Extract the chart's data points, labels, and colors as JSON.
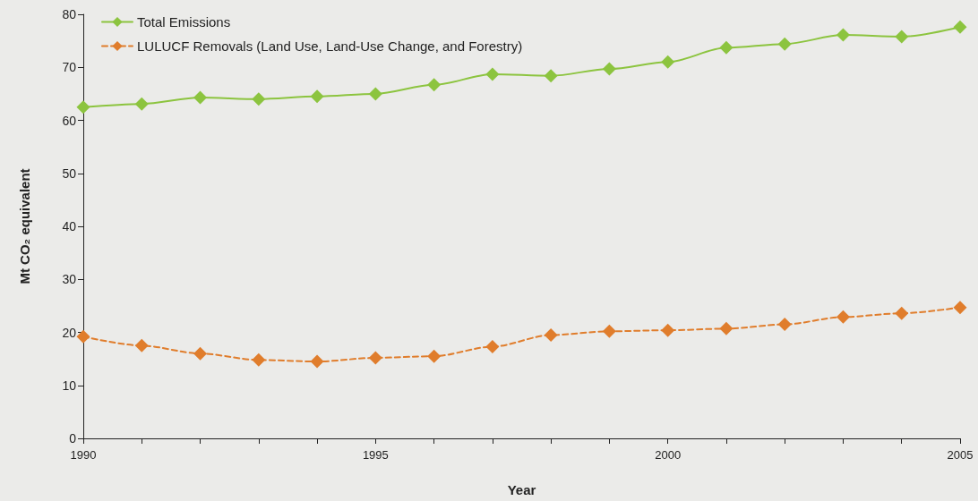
{
  "chart_data": {
    "type": "line",
    "xlabel": "Year",
    "ylabel": "Mt CO₂ equivalent",
    "x": [
      1990,
      1991,
      1992,
      1993,
      1994,
      1995,
      1996,
      1997,
      1998,
      1999,
      2000,
      2001,
      2002,
      2003,
      2004,
      2005
    ],
    "series": [
      {
        "name": "Total Emissions",
        "color": "#8cc43f",
        "line_style": "solid",
        "values": [
          62.5,
          63.1,
          64.3,
          64.0,
          64.5,
          65.0,
          66.7,
          68.7,
          68.4,
          69.7,
          71.0,
          73.7,
          74.4,
          76.1,
          75.8,
          77.6
        ]
      },
      {
        "name": "LULUCF Removals (Land Use, Land-Use Change, and Forestry)",
        "color": "#e07d2c",
        "line_style": "dashed",
        "values": [
          19.2,
          17.5,
          16.0,
          14.8,
          14.5,
          15.2,
          15.5,
          17.3,
          19.5,
          20.2,
          20.4,
          20.7,
          21.5,
          22.9,
          23.6,
          24.7
        ]
      }
    ],
    "xlim": [
      1990,
      2005
    ],
    "xticks": [
      1990,
      {
        "value": 1991,
        "label": null
      },
      {
        "value": 1992,
        "label": null
      },
      {
        "value": 1993,
        "label": null
      },
      {
        "value": 1994,
        "label": null
      },
      1995,
      {
        "value": 1996,
        "label": null
      },
      {
        "value": 1997,
        "label": null
      },
      {
        "value": 1998,
        "label": null
      },
      {
        "value": 1999,
        "label": null
      },
      2000,
      {
        "value": 2001,
        "label": null
      },
      {
        "value": 2002,
        "label": null
      },
      {
        "value": 2003,
        "label": null
      },
      {
        "value": 2004,
        "label": null
      },
      2005
    ],
    "ylim": [
      0,
      80
    ],
    "yticks": [
      0,
      10,
      20,
      30,
      40,
      50,
      60,
      70,
      80
    ],
    "grid": false,
    "legend": "top left",
    "marker": "diamond"
  }
}
